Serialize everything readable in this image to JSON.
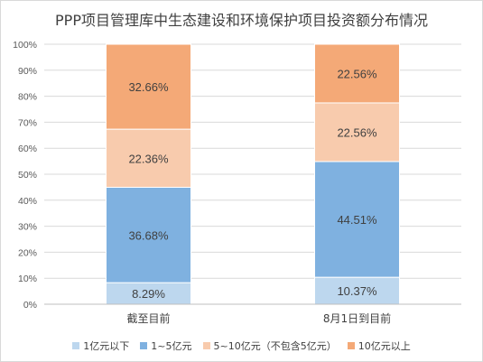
{
  "chart_data": {
    "type": "bar",
    "stacked": true,
    "title": "PPP项目管理库中生态建设和环境保护项目投资额分布情况",
    "categories": [
      "截至目前",
      "8月1日到目前"
    ],
    "y_ticks": [
      "0%",
      "10%",
      "20%",
      "30%",
      "40%",
      "50%",
      "60%",
      "70%",
      "80%",
      "90%",
      "100%"
    ],
    "ylim": [
      0,
      100
    ],
    "grid": true,
    "legend_position": "bottom",
    "series": [
      {
        "name": "1亿元以下",
        "color": "#bdd7ee",
        "values": [
          8.29,
          10.37
        ],
        "labels": [
          "8.29%",
          "10.37%"
        ]
      },
      {
        "name": "1~5亿元",
        "color": "#7fb1e0",
        "values": [
          36.68,
          44.51
        ],
        "labels": [
          "36.68%",
          "44.51%"
        ]
      },
      {
        "name": "5~10亿元（不包含5亿元）",
        "color": "#f8cbad",
        "values": [
          22.36,
          22.56
        ],
        "labels": [
          "22.36%",
          "22.56%"
        ]
      },
      {
        "name": "10亿元以上",
        "color": "#f4a977",
        "values": [
          32.66,
          22.56
        ],
        "labels": [
          "32.66%",
          "22.56%"
        ]
      }
    ]
  }
}
